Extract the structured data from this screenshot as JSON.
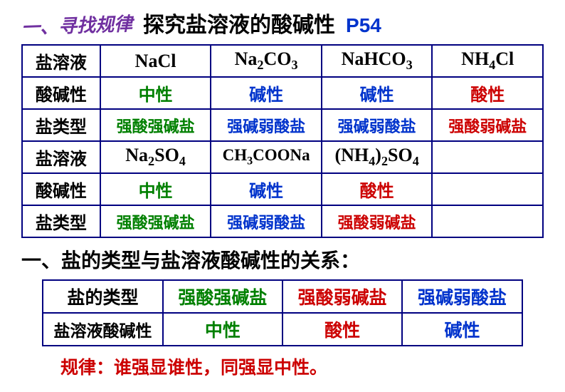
{
  "header": {
    "subtitle": "一、寻找规律",
    "title": "探究盐溶液的酸碱性",
    "pageRef": "P54"
  },
  "table1": {
    "row1_label": "盐溶液",
    "row2_label": "酸碱性",
    "row3_label": "盐类型",
    "cols_a": {
      "c1": {
        "formula": "NaCl",
        "ph": "中性",
        "type": "强酸强碱盐",
        "phColor": "green",
        "typeColor": "green"
      },
      "c2": {
        "formula": "Na₂CO₃",
        "ph": "碱性",
        "type": "强碱弱酸盐",
        "phColor": "blue",
        "typeColor": "blue"
      },
      "c3": {
        "formula": "NaHCO₃",
        "ph": "碱性",
        "type": "强碱弱酸盐",
        "phColor": "blue",
        "typeColor": "blue"
      },
      "c4": {
        "formula": "NH₄Cl",
        "ph": "酸性",
        "type": "强酸弱碱盐",
        "phColor": "red",
        "typeColor": "red"
      }
    },
    "cols_b": {
      "c1": {
        "formula": "Na₂SO₄",
        "ph": "中性",
        "type": "强酸强碱盐",
        "phColor": "green",
        "typeColor": "green"
      },
      "c2": {
        "formula": "CH₃COONa",
        "ph": "碱性",
        "type": "强碱弱酸盐",
        "phColor": "blue",
        "typeColor": "blue"
      },
      "c3": {
        "formula": "(NH₄)₂SO₄",
        "ph": "酸性",
        "type": "强酸弱碱盐",
        "phColor": "red",
        "typeColor": "red"
      },
      "c4": {
        "formula": "",
        "ph": "",
        "type": ""
      }
    }
  },
  "sectionTitle": "一、盐的类型与盐溶液酸碱性的关系：",
  "table2": {
    "r1_label": "盐的类型",
    "r2_label": "盐溶液酸碱性",
    "cols": {
      "c1": {
        "type": "强酸强碱盐",
        "ph": "中性",
        "typeColor": "green",
        "phColor": "green"
      },
      "c2": {
        "type": "强酸弱碱盐",
        "ph": "酸性",
        "typeColor": "red",
        "phColor": "red"
      },
      "c3": {
        "type": "强碱弱酸盐",
        "ph": "碱性",
        "typeColor": "blue",
        "phColor": "blue"
      }
    }
  },
  "rule": "规律：谁强显谁性，同强显中性。"
}
